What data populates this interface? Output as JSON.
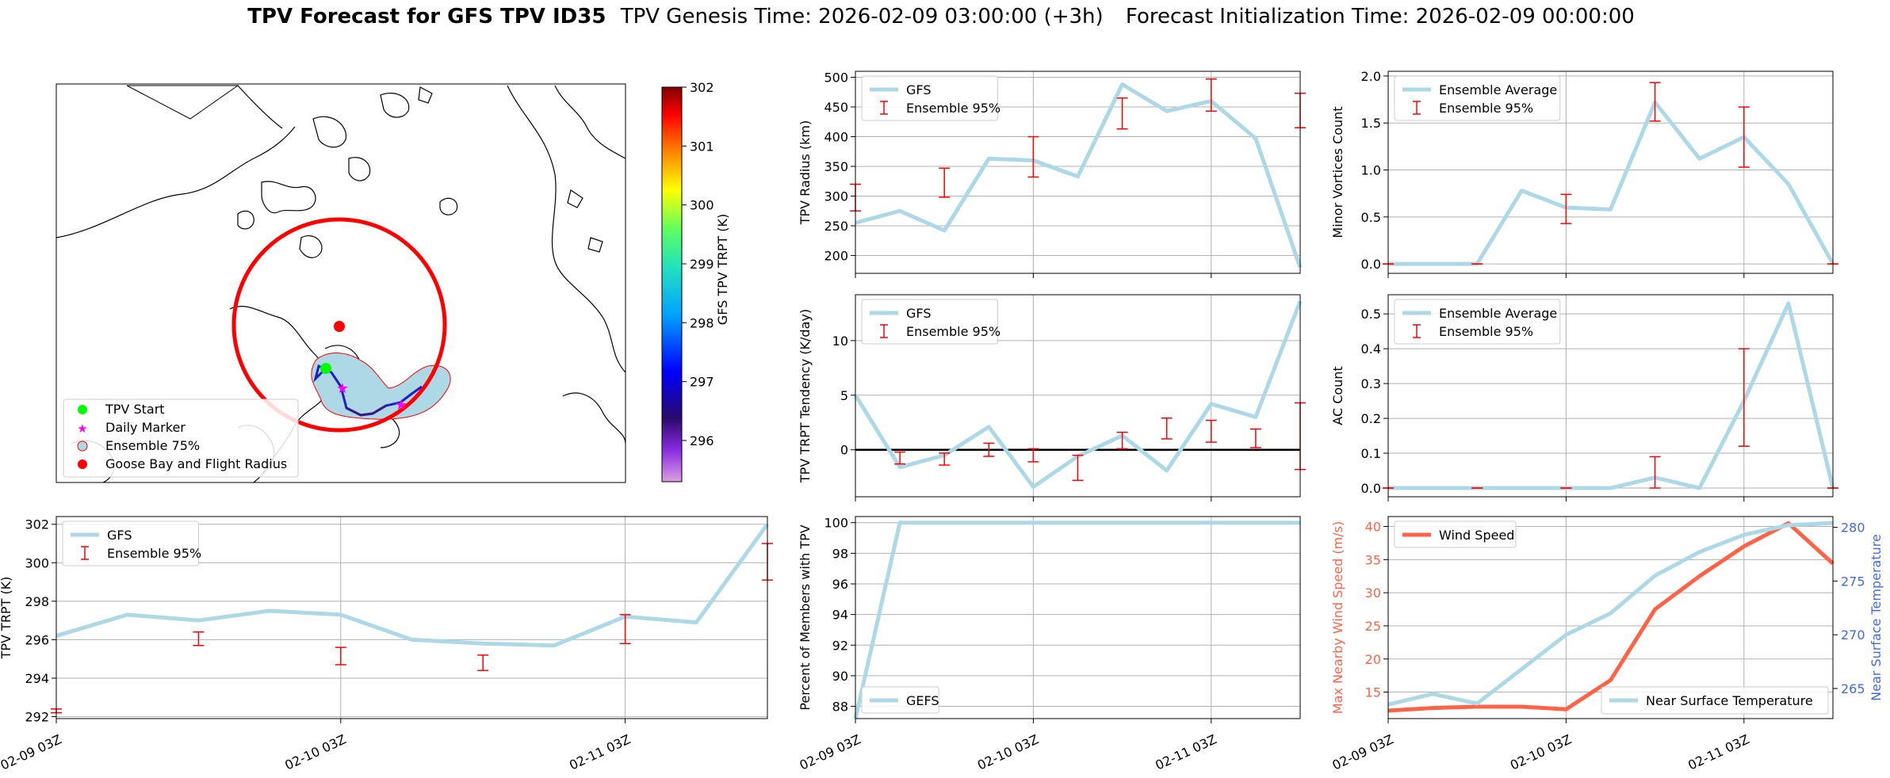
{
  "title": {
    "main": "TPV Forecast for GFS TPV ID35",
    "genesis": "TPV Genesis Time: 2026-02-09 03:00:00 (+3h)",
    "init": "Forecast Initialization Time: 2026-02-09 00:00:00"
  },
  "colors": {
    "gfs_line": "#add8e6",
    "ensemble_err": "#ff0000",
    "wind": "#ff6347",
    "temp_axis": "#4169e1",
    "grid": "#b0b0b0"
  },
  "time_ticks": [
    "02-09 03Z",
    "02-10 03Z",
    "02-11 03Z"
  ],
  "map": {
    "colorbar_label": "GFS TPV TRPT (K)",
    "colorbar_ticks": [
      302,
      301,
      300,
      299,
      298,
      297,
      296
    ],
    "colorbar_range": [
      295.3,
      302
    ],
    "legend": [
      "TPV Start",
      "Daily Marker",
      "Ensemble 75%",
      "Goose Bay and Flight Radius"
    ]
  },
  "chart_data": [
    {
      "id": "radius",
      "type": "line",
      "ylabel": "TPV Radius (km)",
      "ylim": [
        170,
        510
      ],
      "yticks": [
        200,
        250,
        300,
        350,
        400,
        450,
        500
      ],
      "x": [
        0,
        1,
        2,
        3,
        4,
        5,
        6,
        7,
        8,
        9,
        10
      ],
      "series": [
        {
          "name": "GFS",
          "values": [
            255,
            275,
            242,
            363,
            360,
            333,
            488,
            443,
            460,
            397,
            180
          ]
        }
      ],
      "errorbars": {
        "name": "Ensemble 95%",
        "x": [
          0,
          2,
          4,
          6,
          8,
          10
        ],
        "low": [
          275,
          298,
          332,
          413,
          443,
          415
        ],
        "high": [
          320,
          347,
          400,
          465,
          497,
          473
        ]
      },
      "legend": [
        "GFS",
        "Ensemble 95%"
      ],
      "xticks_shown": false
    },
    {
      "id": "minor_vortices",
      "type": "line",
      "ylabel": "Minor Vortices Count",
      "ylim": [
        -0.1,
        2.05
      ],
      "yticks": [
        "0.0",
        "0.5",
        "1.0",
        "1.5",
        "2.0"
      ],
      "x": [
        0,
        1,
        2,
        3,
        4,
        5,
        6,
        7,
        8,
        9,
        10
      ],
      "series": [
        {
          "name": "Ensemble Average",
          "values": [
            0,
            0,
            0,
            0.78,
            0.6,
            0.58,
            1.72,
            1.12,
            1.35,
            0.85,
            0
          ]
        }
      ],
      "errorbars": {
        "name": "Ensemble 95%",
        "x": [
          0,
          2,
          4,
          6,
          8,
          10
        ],
        "low": [
          0,
          0,
          0.43,
          1.52,
          1.03,
          0
        ],
        "high": [
          0,
          0,
          0.74,
          1.93,
          1.67,
          0
        ]
      },
      "legend": [
        "Ensemble Average",
        "Ensemble 95%"
      ],
      "xticks_shown": false
    },
    {
      "id": "tendency",
      "type": "line",
      "ylabel": "TPV TRPT Tendency (K/day)",
      "ylim": [
        -4.3,
        14.2
      ],
      "yticks": [
        0,
        5,
        10
      ],
      "ytick_labels": [
        "0",
        "5",
        "10"
      ],
      "x": [
        0,
        1,
        2,
        3,
        4,
        5,
        6,
        7,
        8,
        9,
        10
      ],
      "series": [
        {
          "name": "GFS",
          "values": [
            5.0,
            -1.6,
            -0.5,
            2.1,
            -3.4,
            -0.6,
            1.3,
            -1.9,
            4.2,
            3.0,
            13.6
          ]
        }
      ],
      "errorbars": {
        "name": "Ensemble 95%",
        "x": [
          1,
          2,
          3,
          4,
          5,
          6,
          7,
          8,
          9,
          10
        ],
        "low": [
          -1.3,
          -1.4,
          -0.6,
          -1.1,
          -2.8,
          0.1,
          1.0,
          0.7,
          0.2,
          -1.8
        ],
        "high": [
          -0.2,
          -0.3,
          0.6,
          0.1,
          -0.5,
          1.6,
          2.9,
          2.7,
          1.9,
          4.3
        ]
      },
      "zero_line": true,
      "legend": [
        "GFS",
        "Ensemble 95%"
      ],
      "xticks_shown": false
    },
    {
      "id": "ac_count",
      "type": "line",
      "ylabel": "AC Count",
      "ylim": [
        -0.025,
        0.555
      ],
      "yticks": [
        "0.0",
        "0.1",
        "0.2",
        "0.3",
        "0.4",
        "0.5"
      ],
      "x": [
        0,
        1,
        2,
        3,
        4,
        5,
        6,
        7,
        8,
        9,
        10
      ],
      "series": [
        {
          "name": "Ensemble Average",
          "values": [
            0,
            0,
            0,
            0,
            0,
            0,
            0.03,
            0,
            0.25,
            0.53,
            0
          ]
        }
      ],
      "errorbars": {
        "name": "Ensemble 95%",
        "x": [
          0,
          2,
          4,
          6,
          8,
          10
        ],
        "low": [
          0,
          0,
          0,
          0,
          0.12,
          0
        ],
        "high": [
          0,
          0,
          0,
          0.09,
          0.4,
          0
        ]
      },
      "legend": [
        "Ensemble Average",
        "Ensemble 95%"
      ],
      "xticks_shown": false
    },
    {
      "id": "trpt",
      "type": "line",
      "ylabel": "TPV TRPT (K)",
      "ylim": [
        291.9,
        302.4
      ],
      "yticks": [
        292,
        294,
        296,
        298,
        300,
        302
      ],
      "x": [
        0,
        1,
        2,
        3,
        4,
        5,
        6,
        7,
        8,
        9,
        10
      ],
      "series": [
        {
          "name": "GFS",
          "values": [
            296.2,
            297.3,
            297.0,
            297.5,
            297.3,
            296.0,
            295.8,
            295.7,
            297.2,
            296.9,
            302.0
          ]
        }
      ],
      "errorbars": {
        "name": "Ensemble 95%",
        "x": [
          0,
          2,
          4,
          6,
          8,
          10
        ],
        "low": [
          292.2,
          295.7,
          294.7,
          294.4,
          295.8,
          299.1
        ],
        "high": [
          292.4,
          296.4,
          295.6,
          295.2,
          297.3,
          301.0
        ]
      },
      "legend": [
        "GFS",
        "Ensemble 95%"
      ],
      "xticks_shown": true
    },
    {
      "id": "percent",
      "type": "line",
      "ylabel": "Percent of Members with TPV",
      "ylim": [
        87.2,
        100.4
      ],
      "yticks": [
        88,
        90,
        92,
        94,
        96,
        98,
        100
      ],
      "x": [
        0,
        1,
        2,
        3,
        4,
        5,
        6,
        7,
        8,
        9,
        10
      ],
      "series": [
        {
          "name": "GEFS",
          "values": [
            87.2,
            100,
            100,
            100,
            100,
            100,
            100,
            100,
            100,
            100,
            100
          ]
        }
      ],
      "legend": [
        "GEFS"
      ],
      "xticks_shown": true
    },
    {
      "id": "wind_temp",
      "type": "line",
      "ylabel": "Max Nearby Wind Speed (m/s)",
      "ylim": [
        11,
        41.5
      ],
      "yticks": [
        15,
        20,
        25,
        30,
        35,
        40
      ],
      "ylabel2": "Near Surface Temperature",
      "ylim2": [
        262.2,
        281
      ],
      "yticks2": [
        265,
        270,
        275,
        280
      ],
      "x": [
        0,
        1,
        2,
        3,
        4,
        5,
        6,
        7,
        8,
        9,
        10
      ],
      "series": [
        {
          "name": "Wind Speed",
          "axis": "left",
          "values": [
            12.2,
            12.6,
            12.8,
            12.8,
            12.4,
            16.8,
            27.5,
            32.5,
            37.0,
            40.5,
            34.4
          ]
        },
        {
          "name": "Near Surface Temperature",
          "axis": "right",
          "values": [
            263.5,
            264.5,
            263.6,
            266.8,
            270.0,
            272.0,
            275.5,
            277.7,
            279.3,
            280.2,
            280.4
          ]
        }
      ],
      "legend": [
        "Wind Speed",
        "Near Surface Temperature"
      ],
      "xticks_shown": true
    }
  ]
}
